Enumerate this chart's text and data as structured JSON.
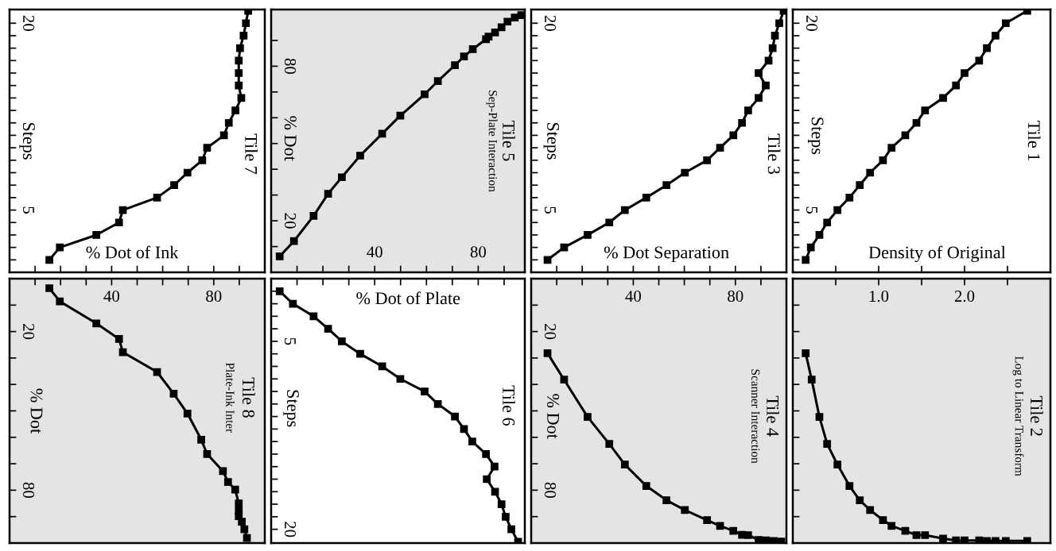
{
  "chart_data": [
    {
      "type": "line",
      "title": "Tile 8",
      "subtitle": "Plate-Ink Inter",
      "ylabel": "% Dot",
      "marker": "square",
      "x": [
        15.6,
        19.7,
        34.0,
        42.9,
        44.4,
        57.8,
        64.3,
        69.7,
        75.1,
        77.4,
        83.6,
        85.6,
        88.4,
        89.8,
        89.8,
        89.8,
        91.0,
        92.0,
        93.0
      ],
      "series": [
        {
          "color": "#000000",
          "values": [
            3.6,
            8.6,
            16.9,
            22.8,
            27.8,
            35.3,
            43.5,
            51.0,
            60.9,
            66.3,
            72.8,
            76.9,
            79.8,
            85.0,
            87.8,
            89.8,
            91.9,
            94.8,
            98.1
          ]
        }
      ],
      "xlim": [
        0,
        100
      ],
      "xticks": [
        {
          "value": 10,
          "label": null
        },
        {
          "value": 20,
          "label": null
        },
        {
          "value": 30,
          "label": null
        },
        40,
        {
          "value": 50,
          "label": null
        },
        {
          "value": 60,
          "label": null
        },
        {
          "value": 70,
          "label": null
        },
        80,
        {
          "value": 90,
          "label": null
        }
      ],
      "ylim": [
        100,
        0
      ],
      "yticks": [
        {
          "value": 10,
          "label": null
        },
        20,
        {
          "value": 30,
          "label": null
        },
        {
          "value": 40,
          "label": null
        },
        {
          "value": 50,
          "label": null
        },
        {
          "value": 60,
          "label": null
        },
        {
          "value": 70,
          "label": null
        },
        80,
        {
          "value": 90,
          "label": null
        }
      ]
    },
    {
      "type": "line",
      "title": "Tile 6",
      "xlabel": "% Dot of Plate",
      "ylabel": "Steps",
      "marker": "square",
      "tick_labels": "y",
      "x": [
        3.3,
        8.4,
        16.4,
        22.0,
        27.3,
        34.4,
        42.9,
        49.9,
        59.3,
        64.4,
        71.0,
        74.5,
        77.7,
        83.0,
        86.3,
        83.3,
        86.5,
        89.0,
        90.6,
        92.8,
        95.4
      ],
      "series": [
        {
          "color": "#000000",
          "values": [
            1,
            2,
            3,
            4,
            5,
            6,
            7,
            8,
            9,
            10,
            11,
            12,
            13,
            14,
            15,
            16,
            17,
            18,
            19,
            20,
            21
          ]
        }
      ],
      "xlim": [
        0,
        98
      ],
      "xticks": [
        10,
        20,
        30,
        40,
        50,
        60,
        70,
        80,
        90
      ],
      "ylim": [
        21.1,
        0
      ],
      "yticks": [
        {
          "value": 1,
          "label": null
        },
        {
          "value": 2,
          "label": null
        },
        {
          "value": 3,
          "label": null
        },
        {
          "value": 4,
          "label": null
        },
        5,
        {
          "value": 6,
          "label": null
        },
        {
          "value": 7,
          "label": null
        },
        {
          "value": 8,
          "label": null
        },
        {
          "value": 9,
          "label": null
        },
        {
          "value": 10,
          "label": null
        },
        {
          "value": 11,
          "label": null
        },
        {
          "value": 12,
          "label": null
        },
        {
          "value": 13,
          "label": null
        },
        {
          "value": 14,
          "label": null
        },
        {
          "value": 15,
          "label": null
        },
        {
          "value": 16,
          "label": null
        },
        {
          "value": 17,
          "label": null
        },
        {
          "value": 18,
          "label": null
        },
        {
          "value": 19,
          "label": null
        },
        20
      ]
    },
    {
      "type": "line",
      "title": "Tile 4",
      "subtitle": "Scanner Interaction",
      "ylabel": "% Dot",
      "marker": "square",
      "x": [
        6.4,
        12.9,
        22.1,
        30.6,
        36.7,
        45.1,
        53.0,
        60.2,
        68.9,
        74.0,
        79.2,
        82.6,
        85.0,
        89.1,
        92.0,
        95.0,
        98.0
      ],
      "series": [
        {
          "color": "#000000",
          "values": [
            28.2,
            38.2,
            52.3,
            62.5,
            70.3,
            78.4,
            83.8,
            87.5,
            91.3,
            93.5,
            95.4,
            96.9,
            97.0,
            98.8,
            99.0,
            99.2,
            99.4
          ]
        }
      ],
      "xlim": [
        0,
        100
      ],
      "xticks": [
        {
          "value": 10,
          "label": null
        },
        {
          "value": 20,
          "label": null
        },
        {
          "value": 30,
          "label": null
        },
        40,
        {
          "value": 50,
          "label": null
        },
        {
          "value": 60,
          "label": null
        },
        {
          "value": 70,
          "label": null
        },
        80,
        {
          "value": 90,
          "label": null
        }
      ],
      "ylim": [
        100,
        0
      ],
      "yticks": [
        {
          "value": 10,
          "label": null
        },
        20,
        {
          "value": 30,
          "label": null
        },
        {
          "value": 40,
          "label": null
        },
        {
          "value": 50,
          "label": null
        },
        {
          "value": 60,
          "label": null
        },
        {
          "value": 70,
          "label": null
        },
        80,
        {
          "value": 90,
          "label": null
        }
      ]
    },
    {
      "type": "line",
      "title": "Tile 2",
      "subtitle": "Log to Linear Transform",
      "marker": "square",
      "tick_labels": "x",
      "x": [
        0.15,
        0.22,
        0.31,
        0.4,
        0.52,
        0.66,
        0.78,
        0.9,
        1.05,
        1.15,
        1.31,
        1.44,
        1.54,
        1.75,
        1.9,
        2.0,
        2.17,
        2.26,
        2.36,
        2.48,
        2.73
      ],
      "series": [
        {
          "color": "#000000",
          "values": [
            28.2,
            38.2,
            52.3,
            62.5,
            70.3,
            78.4,
            83.8,
            87.5,
            91.3,
            93.5,
            95.4,
            97.0,
            97.0,
            98.3,
            99.0,
            99.0,
            99.0,
            99.2,
            99.2,
            99.2,
            99.2
          ]
        }
      ],
      "xlim": [
        0,
        3.0
      ],
      "xticks": [
        {
          "value": 0.5,
          "label": null
        },
        {
          "value": 1.0,
          "label": "1.0"
        },
        {
          "value": 1.5,
          "label": null
        },
        {
          "value": 2.0,
          "label": "2.0"
        },
        {
          "value": 2.5,
          "label": null
        }
      ],
      "ylim": [
        100,
        0
      ],
      "yticks": [
        10,
        20,
        30,
        40,
        50,
        60,
        70,
        80,
        90
      ]
    },
    {
      "type": "line",
      "title": "Tile 7",
      "xlabel": "% Dot of Ink",
      "ylabel": "Steps",
      "marker": "square",
      "tick_labels": "y",
      "x": [
        15.6,
        19.7,
        34.0,
        42.9,
        44.4,
        57.8,
        64.5,
        69.7,
        75.5,
        77.4,
        84.0,
        85.9,
        88.5,
        90.8,
        89.8,
        89.8,
        89.8,
        90.3,
        91.7,
        92.6,
        93.5
      ],
      "series": [
        {
          "color": "#000000",
          "values": [
            1,
            2,
            3,
            4,
            5,
            6,
            7,
            8,
            9,
            10,
            11,
            12,
            13,
            14,
            15,
            16,
            17,
            18,
            19,
            20,
            21
          ]
        }
      ],
      "xlim": [
        0,
        100
      ],
      "xticks": [
        10,
        20,
        30,
        40,
        50,
        60,
        70,
        80,
        90
      ],
      "ylim": [
        0,
        21.1
      ],
      "yticks": [
        {
          "value": 1,
          "label": null
        },
        {
          "value": 2,
          "label": null
        },
        {
          "value": 3,
          "label": null
        },
        {
          "value": 4,
          "label": null
        },
        5,
        {
          "value": 6,
          "label": null
        },
        {
          "value": 7,
          "label": null
        },
        {
          "value": 8,
          "label": null
        },
        {
          "value": 9,
          "label": null
        },
        {
          "value": 10,
          "label": null
        },
        {
          "value": 11,
          "label": null
        },
        {
          "value": 12,
          "label": null
        },
        {
          "value": 13,
          "label": null
        },
        {
          "value": 14,
          "label": null
        },
        {
          "value": 15,
          "label": null
        },
        {
          "value": 16,
          "label": null
        },
        {
          "value": 17,
          "label": null
        },
        {
          "value": 18,
          "label": null
        },
        {
          "value": 19,
          "label": null
        },
        20
      ]
    },
    {
      "type": "line",
      "title": "Tile 5",
      "subtitle": "Sep-Plate Interaction",
      "ylabel": "% Dot",
      "marker": "square",
      "x": [
        3.3,
        8.8,
        16.4,
        22.0,
        27.3,
        34.4,
        42.9,
        49.9,
        59.3,
        64.4,
        71.0,
        74.5,
        77.9,
        83.0,
        84.0,
        86.5,
        89.0,
        91.3,
        94.1,
        96.6
      ],
      "series": [
        {
          "color": "#000000",
          "values": [
            6.2,
            12.1,
            21.9,
            30.5,
            36.9,
            45.3,
            53.8,
            60.8,
            69.1,
            74.2,
            80.4,
            83.8,
            86.6,
            90.5,
            91.5,
            93.1,
            95.1,
            97.3,
            98.9,
            99.8
          ]
        }
      ],
      "xlim": [
        0,
        98
      ],
      "xticks": [
        {
          "value": 10,
          "label": null
        },
        {
          "value": 20,
          "label": null
        },
        {
          "value": 30,
          "label": null
        },
        40,
        {
          "value": 50,
          "label": null
        },
        {
          "value": 60,
          "label": null
        },
        {
          "value": 70,
          "label": null
        },
        80,
        {
          "value": 90,
          "label": null
        }
      ],
      "ylim": [
        0,
        102
      ],
      "yticks": [
        {
          "value": 10,
          "label": null
        },
        20,
        {
          "value": 30,
          "label": null
        },
        {
          "value": 40,
          "label": null
        },
        {
          "value": 50,
          "label": null
        },
        {
          "value": 60,
          "label": null
        },
        {
          "value": 70,
          "label": null
        },
        80,
        {
          "value": 90,
          "label": null
        }
      ]
    },
    {
      "type": "line",
      "title": "Tile 3",
      "xlabel": "% Dot Separation",
      "ylabel": "Steps",
      "marker": "square",
      "tick_labels": "y",
      "x": [
        6.4,
        12.9,
        22.1,
        30.6,
        36.7,
        45.1,
        53.0,
        60.2,
        68.9,
        74.0,
        79.2,
        82.6,
        85.0,
        89.1,
        91.9,
        89.1,
        93.0,
        94.6,
        95.5,
        97.2,
        98.9
      ],
      "series": [
        {
          "color": "#000000",
          "values": [
            1,
            2,
            3,
            4,
            5,
            6,
            7,
            8,
            9,
            10,
            11,
            12,
            13,
            14,
            15,
            16,
            17,
            18,
            19,
            20,
            21
          ]
        }
      ],
      "xlim": [
        0,
        100
      ],
      "xticks": [
        10,
        20,
        30,
        40,
        50,
        60,
        70,
        80,
        90
      ],
      "ylim": [
        0,
        21.1
      ],
      "yticks": [
        {
          "value": 1,
          "label": null
        },
        {
          "value": 2,
          "label": null
        },
        {
          "value": 3,
          "label": null
        },
        {
          "value": 4,
          "label": null
        },
        5,
        {
          "value": 6,
          "label": null
        },
        {
          "value": 7,
          "label": null
        },
        {
          "value": 8,
          "label": null
        },
        {
          "value": 9,
          "label": null
        },
        {
          "value": 10,
          "label": null
        },
        {
          "value": 11,
          "label": null
        },
        {
          "value": 12,
          "label": null
        },
        {
          "value": 13,
          "label": null
        },
        {
          "value": 14,
          "label": null
        },
        {
          "value": 15,
          "label": null
        },
        {
          "value": 16,
          "label": null
        },
        {
          "value": 17,
          "label": null
        },
        {
          "value": 18,
          "label": null
        },
        {
          "value": 19,
          "label": null
        },
        20
      ]
    },
    {
      "type": "line",
      "title": "Tile 1",
      "xlabel": "Density of Original",
      "ylabel": "Steps",
      "marker": "square",
      "tick_labels": "y",
      "x": [
        0.15,
        0.21,
        0.31,
        0.4,
        0.52,
        0.66,
        0.78,
        0.9,
        1.05,
        1.15,
        1.31,
        1.44,
        1.54,
        1.75,
        1.9,
        2.0,
        2.17,
        2.26,
        2.36,
        2.48,
        2.73
      ],
      "series": [
        {
          "color": "#000000",
          "values": [
            1,
            2,
            3,
            4,
            5,
            6,
            7,
            8,
            9,
            10,
            11,
            12,
            13,
            14,
            15,
            16,
            17,
            18,
            19,
            20,
            21
          ]
        }
      ],
      "xlim": [
        0,
        3.0
      ],
      "xticks": [
        0.5,
        1.0,
        1.5,
        2.0,
        2.5
      ],
      "ylim": [
        0,
        21.1
      ],
      "yticks": [
        {
          "value": 1,
          "label": null
        },
        {
          "value": 2,
          "label": null
        },
        {
          "value": 3,
          "label": null
        },
        {
          "value": 4,
          "label": null
        },
        5,
        {
          "value": 6,
          "label": null
        },
        {
          "value": 7,
          "label": null
        },
        {
          "value": 8,
          "label": null
        },
        {
          "value": 9,
          "label": null
        },
        {
          "value": 10,
          "label": null
        },
        {
          "value": 11,
          "label": null
        },
        {
          "value": 12,
          "label": null
        },
        {
          "value": 13,
          "label": null
        },
        {
          "value": 14,
          "label": null
        },
        {
          "value": 15,
          "label": null
        },
        {
          "value": 16,
          "label": null
        },
        {
          "value": 17,
          "label": null
        },
        {
          "value": 18,
          "label": null
        },
        {
          "value": 19,
          "label": null
        },
        20
      ]
    }
  ]
}
